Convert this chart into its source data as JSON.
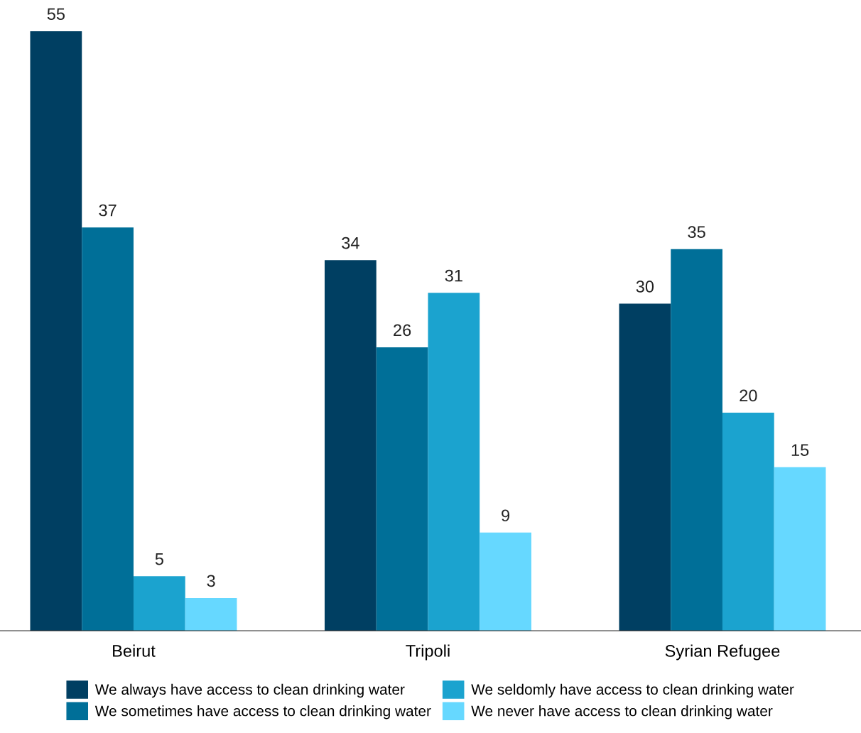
{
  "chart_data": {
    "type": "bar",
    "categories": [
      "Beirut",
      "Tripoli",
      "Syrian Refugee"
    ],
    "series": [
      {
        "name": "We always have access to clean drinking water",
        "color": "#003f62",
        "values": [
          55,
          34,
          30
        ]
      },
      {
        "name": "We sometimes have access to clean drinking water",
        "color": "#006f98",
        "values": [
          37,
          26,
          35
        ]
      },
      {
        "name": "We seldomly have access to clean drinking water",
        "color": "#1ba3cf",
        "values": [
          5,
          31,
          20
        ]
      },
      {
        "name": "We never have access to clean drinking water",
        "color": "#66d8ff",
        "values": [
          3,
          9,
          15
        ]
      }
    ],
    "data_labels": true,
    "legend": "bottom",
    "grid": false
  }
}
